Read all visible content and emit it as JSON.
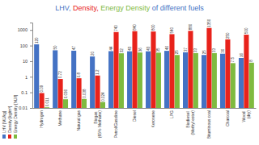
{
  "chart_data": {
    "type": "bar",
    "title": "LHV, Density, Energy Density of different fuels",
    "categories": [
      "Hydrogen",
      "Methane",
      "Natural gas",
      "Biogas (65% Methane)",
      "Petrol/Gasoline",
      "Diesel",
      "Kerosene",
      "LPG",
      "Biodiesel (Methyl ester)",
      "Bituminous coal",
      "Charcoal",
      "Wood (dry)"
    ],
    "series": [
      {
        "name": "LHV [MJ/kg]",
        "color": "#4472c4",
        "values": [
          120,
          50,
          47,
          20,
          44,
          43,
          43,
          46,
          37,
          25,
          30,
          16
        ]
      },
      {
        "name": "Density [kg/m³]",
        "color": "#e8221b",
        "values": [
          0.09,
          0.72,
          0.8,
          1.2,
          740,
          840,
          800,
          540,
          880,
          1350,
          250,
          500
        ]
      },
      {
        "name": "Energy Density [MJ/l]",
        "color": "#7fba3f",
        "values": [
          0.011,
          0.036,
          0.038,
          0.024,
          32,
          36,
          35,
          25,
          33,
          33,
          7.5,
          8
        ]
      }
    ],
    "ylim": [
      0.01,
      3000
    ],
    "yticks": [
      0.01,
      0.1,
      1,
      10,
      100,
      1000
    ],
    "log": "y",
    "grid": false,
    "legend": "left",
    "data_labels": true
  }
}
